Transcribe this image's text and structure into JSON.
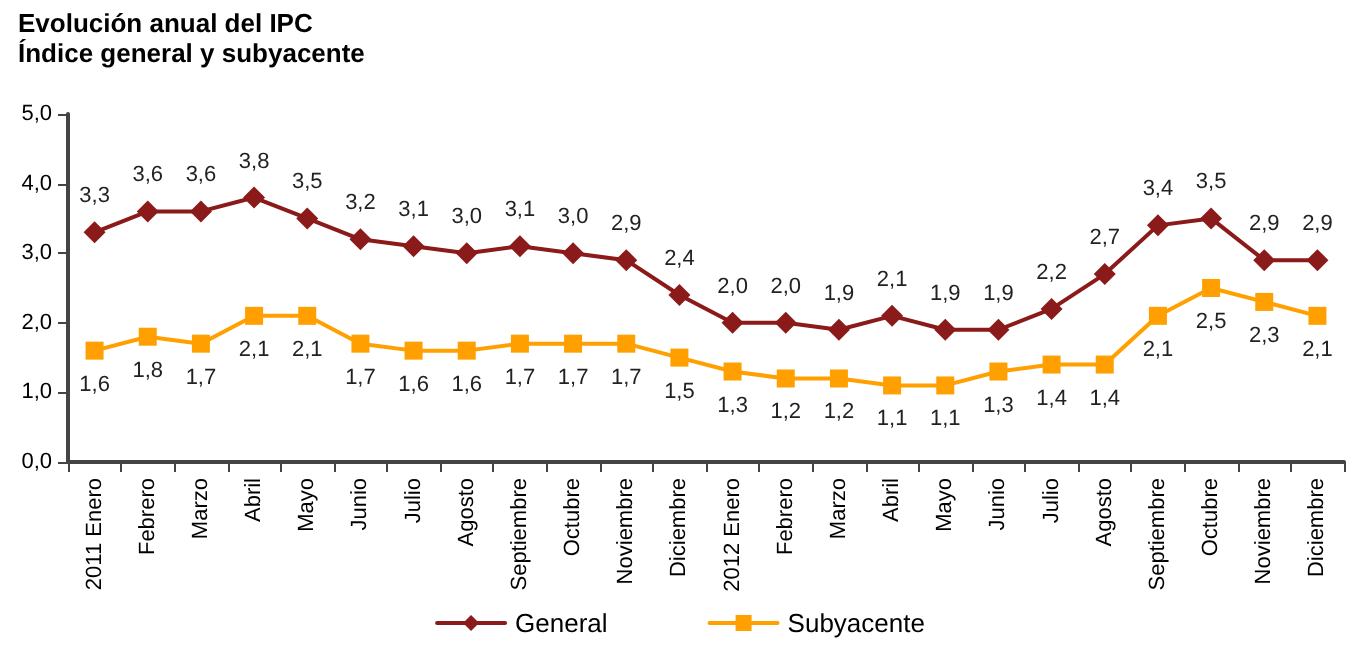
{
  "chart_data": {
    "type": "line",
    "title": "Evolución anual del IPC",
    "subtitle": "Índice general y subyacente",
    "categories": [
      "2011 Enero",
      "Febrero",
      "Marzo",
      "Abril",
      "Mayo",
      "Junio",
      "Julio",
      "Agosto",
      "Septiembre",
      "Octubre",
      "Noviembre",
      "Diciembre",
      "2012 Enero",
      "Febrero",
      "Marzo",
      "Abril",
      "Mayo",
      "Junio",
      "Julio",
      "Agosto",
      "Septiembre",
      "Octubre",
      "Noviembre",
      "Diciembre"
    ],
    "series": [
      {
        "name": "General",
        "color": "#8b1a1a",
        "marker": "diamond",
        "values": [
          3.3,
          3.6,
          3.6,
          3.8,
          3.5,
          3.2,
          3.1,
          3.0,
          3.1,
          3.0,
          2.9,
          2.4,
          2.0,
          2.0,
          1.9,
          2.1,
          1.9,
          1.9,
          2.2,
          2.7,
          3.4,
          3.5,
          2.9,
          2.9
        ],
        "value_labels": [
          "3,3",
          "3,6",
          "3,6",
          "3,8",
          "3,5",
          "3,2",
          "3,1",
          "3,0",
          "3,1",
          "3,0",
          "2,9",
          "2,4",
          "2,0",
          "2,0",
          "1,9",
          "2,1",
          "1,9",
          "1,9",
          "2,2",
          "2,7",
          "3,4",
          "3,5",
          "2,9",
          "2,9"
        ]
      },
      {
        "name": "Subyacente",
        "color": "#ffa000",
        "marker": "square",
        "values": [
          1.6,
          1.8,
          1.7,
          2.1,
          2.1,
          1.7,
          1.6,
          1.6,
          1.7,
          1.7,
          1.7,
          1.5,
          1.3,
          1.2,
          1.2,
          1.1,
          1.1,
          1.3,
          1.4,
          1.4,
          2.1,
          2.5,
          2.3,
          2.1
        ],
        "value_labels": [
          "1,6",
          "1,8",
          "1,7",
          "2,1",
          "2,1",
          "1,7",
          "1,6",
          "1,6",
          "1,7",
          "1,7",
          "1,7",
          "1,5",
          "1,3",
          "1,2",
          "1,2",
          "1,1",
          "1,1",
          "1,3",
          "1,4",
          "1,4",
          "2,1",
          "2,5",
          "2,3",
          "2,1"
        ]
      }
    ],
    "ylim": [
      0,
      5
    ],
    "yticks": [
      {
        "value": 0,
        "label": "0,0"
      },
      {
        "value": 1,
        "label": "1,0"
      },
      {
        "value": 2,
        "label": "2,0"
      },
      {
        "value": 3,
        "label": "3,0"
      },
      {
        "value": 4,
        "label": "4,0"
      },
      {
        "value": 5,
        "label": "5,0"
      }
    ],
    "grid": false,
    "legend": "bottom",
    "line_style": "solid"
  }
}
